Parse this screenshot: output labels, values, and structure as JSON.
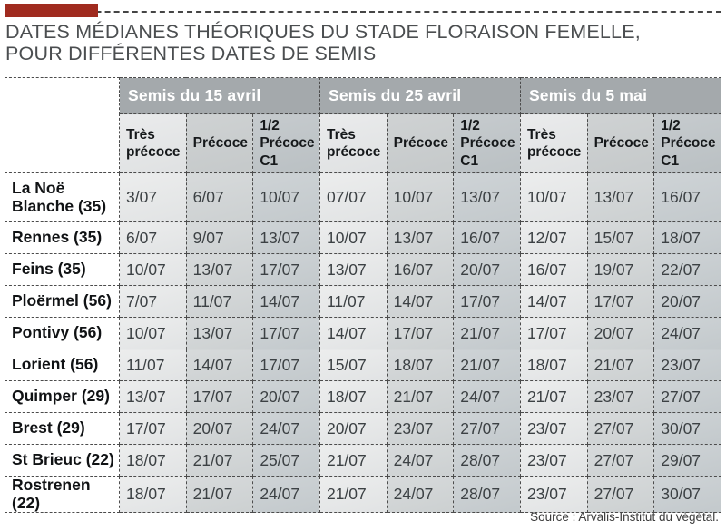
{
  "accent": {
    "bar_color": "#a02b1f",
    "group_header_bg": "#a4a9ac",
    "dash_border": "#4c4c4c"
  },
  "title": {
    "line1": "DATES MÉDIANES THÉORIQUES DU STADE FLORAISON FEMELLE,",
    "line2": "POUR DIFFÉRENTES DATES DE SEMIS"
  },
  "source": "Source : Arvalis-Institut du végétal.",
  "chart_data": {
    "type": "table",
    "groups": [
      "Semis du 15 avril",
      "Semis du 25 avril",
      "Semis du 5 mai"
    ],
    "subcolumns": [
      "Très précoce",
      "Précoce",
      "1/2 Précoce C1"
    ],
    "rows": [
      {
        "label": "La Noë Blanche (35)",
        "values": [
          "3/07",
          "6/07",
          "10/07",
          "07/07",
          "10/07",
          "13/07",
          "10/07",
          "13/07",
          "16/07"
        ]
      },
      {
        "label": "Rennes (35)",
        "values": [
          "6/07",
          "9/07",
          "13/07",
          "10/07",
          "13/07",
          "16/07",
          "12/07",
          "15/07",
          "18/07"
        ]
      },
      {
        "label": "Feins (35)",
        "values": [
          "10/07",
          "13/07",
          "17/07",
          "13/07",
          "16/07",
          "20/07",
          "16/07",
          "19/07",
          "22/07"
        ]
      },
      {
        "label": "Ploërmel (56)",
        "values": [
          "7/07",
          "11/07",
          "14/07",
          "11/07",
          "14/07",
          "17/07",
          "14/07",
          "17/07",
          "20/07"
        ]
      },
      {
        "label": "Pontivy (56)",
        "values": [
          "10/07",
          "13/07",
          "17/07",
          "14/07",
          "17/07",
          "21/07",
          "17/07",
          "20/07",
          "24/07"
        ]
      },
      {
        "label": "Lorient (56)",
        "values": [
          "11/07",
          "14/07",
          "17/07",
          "15/07",
          "18/07",
          "21/07",
          "18/07",
          "21/07",
          "23/07"
        ]
      },
      {
        "label": "Quimper (29)",
        "values": [
          "13/07",
          "17/07",
          "20/07",
          "18/07",
          "21/07",
          "24/07",
          "21/07",
          "23/07",
          "27/07"
        ]
      },
      {
        "label": "Brest (29)",
        "values": [
          "17/07",
          "20/07",
          "24/07",
          "20/07",
          "23/07",
          "27/07",
          "23/07",
          "27/07",
          "30/07"
        ]
      },
      {
        "label": "St Brieuc (22)",
        "values": [
          "18/07",
          "21/07",
          "25/07",
          "21/07",
          "24/07",
          "28/07",
          "23/07",
          "27/07",
          "29/07"
        ]
      },
      {
        "label": "Rostrenen (22)",
        "values": [
          "18/07",
          "21/07",
          "24/07",
          "21/07",
          "24/07",
          "28/07",
          "23/07",
          "27/07",
          "30/07"
        ]
      }
    ]
  }
}
